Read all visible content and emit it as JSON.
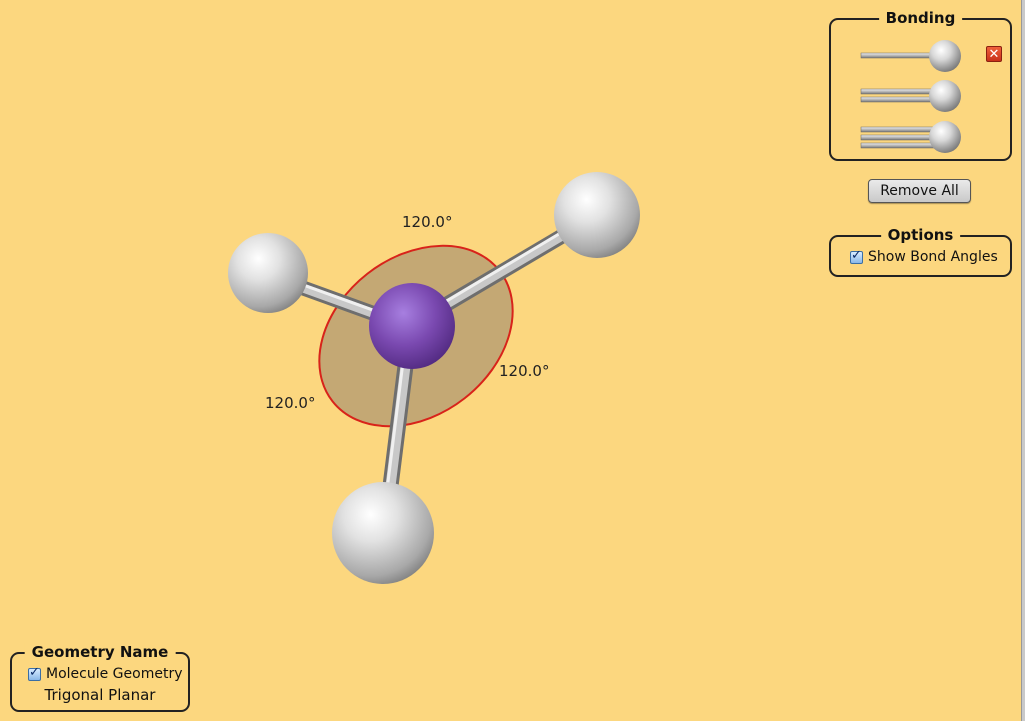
{
  "colors": {
    "background": "#fcd77f",
    "central_atom": "#7a49b0",
    "outer_atom": "#d9d9d9",
    "angle_plane": "#c4a874",
    "angle_outline": "#d8231a"
  },
  "scene": {
    "bond_angles": [
      "120.0°",
      "120.0°",
      "120.0°"
    ]
  },
  "bonding_panel": {
    "title": "Bonding",
    "options": [
      {
        "name": "single-bond",
        "icon": "single-bond-icon"
      },
      {
        "name": "double-bond",
        "icon": "double-bond-icon"
      },
      {
        "name": "triple-bond",
        "icon": "triple-bond-icon"
      }
    ],
    "remove_icon": "close-icon",
    "remove_icon_glyph": "✕"
  },
  "remove_all_label": "Remove All",
  "options_panel": {
    "title": "Options",
    "show_bond_angles_label": "Show Bond Angles",
    "show_bond_angles_checked": true
  },
  "geometry_panel": {
    "title": "Geometry Name",
    "molecule_geometry_label": "Molecule Geometry",
    "molecule_geometry_checked": true,
    "value": "Trigonal Planar"
  }
}
